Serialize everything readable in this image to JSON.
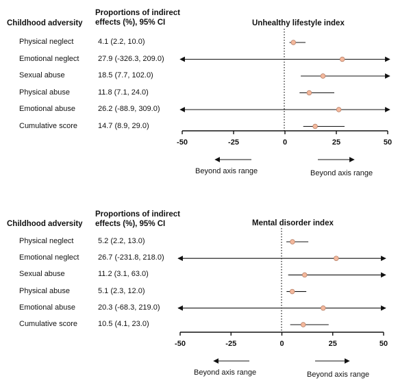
{
  "chart_data": [
    {
      "type": "forest",
      "title": "Unhealthy lifestyle index",
      "left_header": "Childhood adversity",
      "mid_header_line1": "Proportions of indirect",
      "mid_header_line2": "effects (%), 95% CI",
      "xlim": [
        -50,
        50
      ],
      "xticks": [
        "-50",
        "-25",
        "0",
        "25",
        "50"
      ],
      "beyond_left": "Beyond axis range",
      "beyond_right": "Beyond axis range",
      "marker_color": "#f4b89c",
      "rows": [
        {
          "label": "Physical neglect",
          "ci_text": "4.1 (2.2, 10.0)",
          "est": 4.1,
          "lo": 2.2,
          "hi": 10.0
        },
        {
          "label": "Emotional neglect",
          "ci_text": "27.9 (-326.3, 209.0)",
          "est": 27.9,
          "lo": -326.3,
          "hi": 209.0
        },
        {
          "label": "Sexual abuse",
          "ci_text": "18.5 (7.7, 102.0)",
          "est": 18.5,
          "lo": 7.7,
          "hi": 102.0
        },
        {
          "label": "Physical abuse",
          "ci_text": "11.8 (7.1, 24.0)",
          "est": 11.8,
          "lo": 7.1,
          "hi": 24.0
        },
        {
          "label": "Emotional abuse",
          "ci_text": "26.2 (-88.9, 309.0)",
          "est": 26.2,
          "lo": -88.9,
          "hi": 309.0
        },
        {
          "label": "Cumulative score",
          "ci_text": "14.7 (8.9, 29.0)",
          "est": 14.7,
          "lo": 8.9,
          "hi": 29.0
        }
      ]
    },
    {
      "type": "forest",
      "title": "Mental disorder index",
      "left_header": "Childhood adversity",
      "mid_header_line1": "Proportions of indirect",
      "mid_header_line2": "effects (%), 95% CI",
      "xlim": [
        -50,
        50
      ],
      "xticks": [
        "-50",
        "-25",
        "0",
        "25",
        "50"
      ],
      "beyond_left": "Beyond axis range",
      "beyond_right": "Beyond axis range",
      "marker_color": "#f4b89c",
      "rows": [
        {
          "label": "Physical neglect",
          "ci_text": "5.2 (2.2, 13.0)",
          "est": 5.2,
          "lo": 2.2,
          "hi": 13.0
        },
        {
          "label": "Emotional neglect",
          "ci_text": "26.7 (-231.8, 218.0)",
          "est": 26.7,
          "lo": -231.8,
          "hi": 218.0
        },
        {
          "label": "Sexual abuse",
          "ci_text": "11.2 (3.1, 63.0)",
          "est": 11.2,
          "lo": 3.1,
          "hi": 63.0
        },
        {
          "label": "Physical abuse",
          "ci_text": "5.1 (2.3, 12.0)",
          "est": 5.1,
          "lo": 2.3,
          "hi": 12.0
        },
        {
          "label": "Emotional abuse",
          "ci_text": "20.3 (-68.3, 219.0)",
          "est": 20.3,
          "lo": -68.3,
          "hi": 219.0
        },
        {
          "label": "Cumulative score",
          "ci_text": "10.5 (4.1, 23.0)",
          "est": 10.5,
          "lo": 4.1,
          "hi": 23.0
        }
      ]
    }
  ]
}
